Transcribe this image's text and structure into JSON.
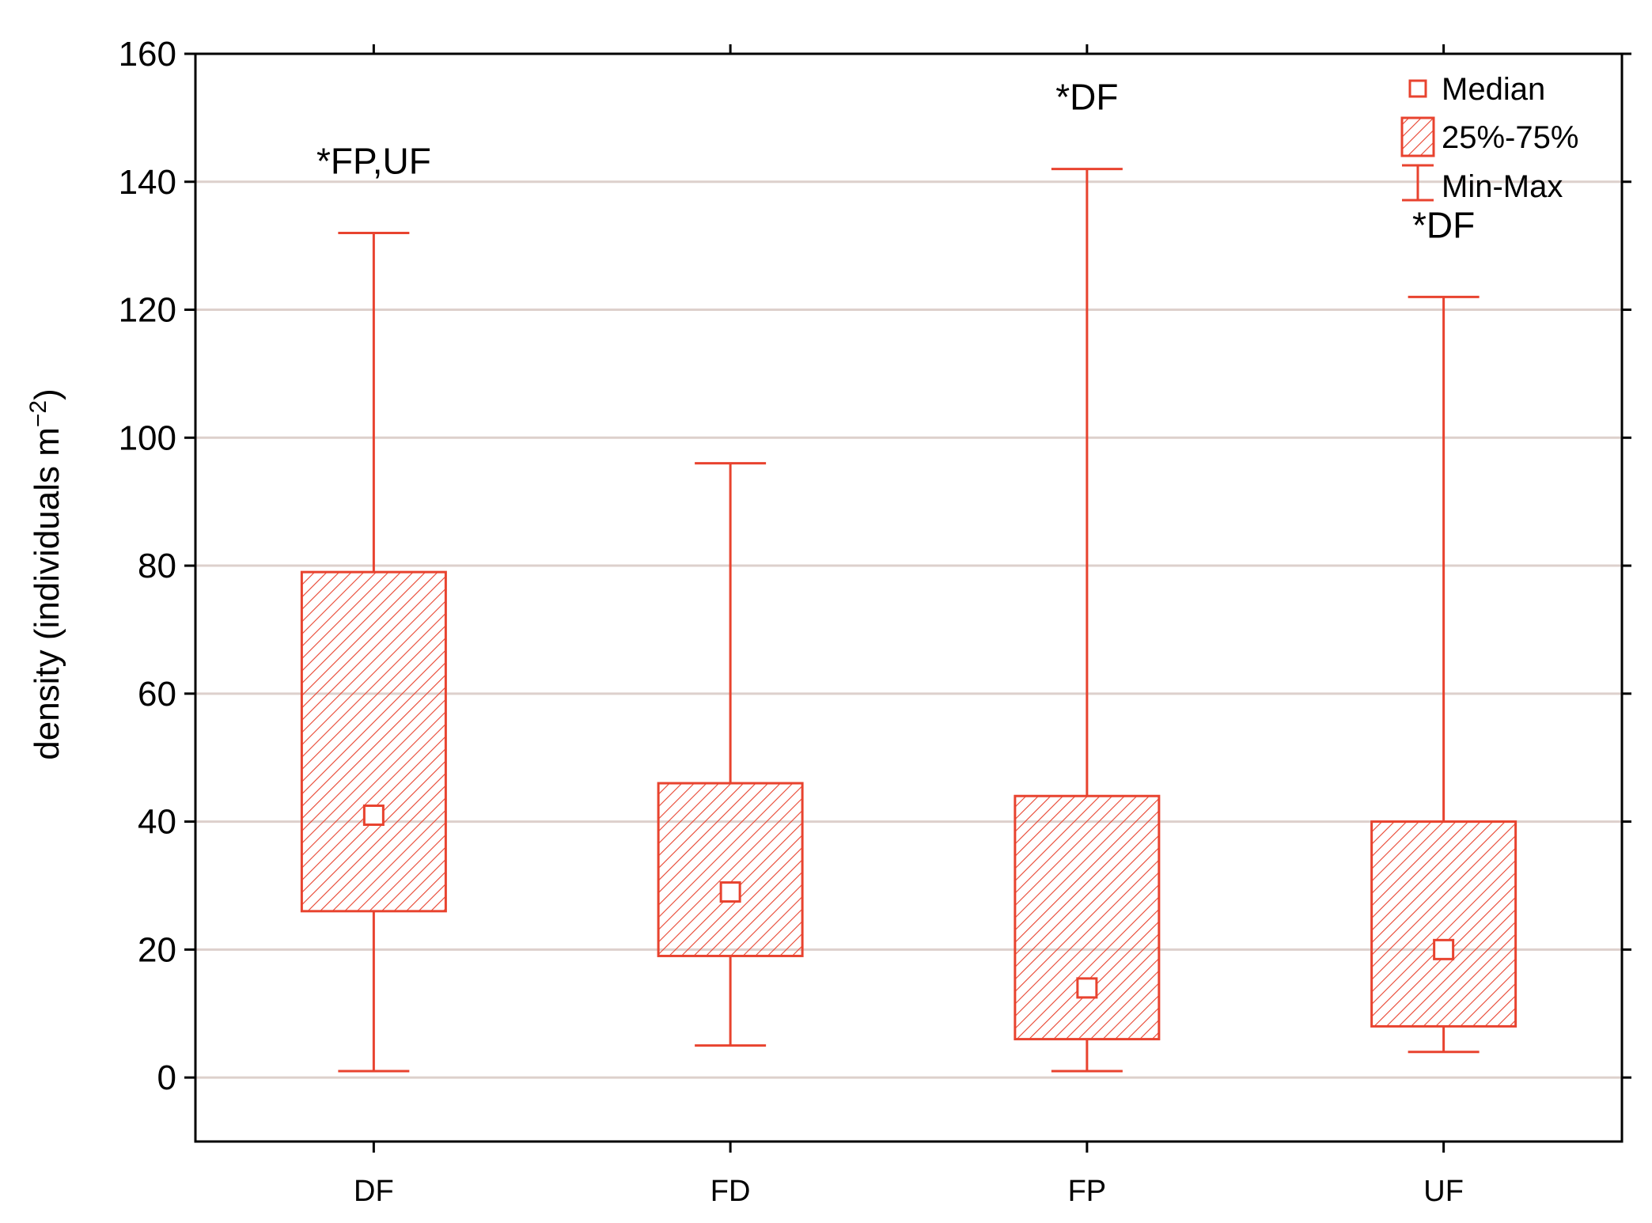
{
  "chart_data": {
    "type": "box",
    "title": "",
    "xlabel": "",
    "ylabel": "density (individuals m",
    "ylabel_superscript": "−2",
    "ylabel_close": ")",
    "ylim": [
      -10,
      160
    ],
    "yticks": [
      0,
      20,
      40,
      60,
      80,
      100,
      120,
      140,
      160
    ],
    "grid": true,
    "legend_position": "top-right",
    "color": "#e8432f",
    "categories": [
      "DF",
      "FD",
      "FP",
      "UF"
    ],
    "boxes": [
      {
        "category": "DF",
        "min": 1,
        "q1": 26,
        "median": 41,
        "q3": 79,
        "max": 132,
        "annotation": "*FP,UF"
      },
      {
        "category": "FD",
        "min": 5,
        "q1": 19,
        "median": 29,
        "q3": 46,
        "max": 96,
        "annotation": ""
      },
      {
        "category": "FP",
        "min": 1,
        "q1": 6,
        "median": 14,
        "q3": 44,
        "max": 142,
        "annotation": "*DF"
      },
      {
        "category": "UF",
        "min": 4,
        "q1": 8,
        "median": 20,
        "q3": 40,
        "max": 122,
        "annotation": "*DF"
      }
    ],
    "legend": [
      {
        "symbol": "median-square",
        "label": "Median"
      },
      {
        "symbol": "hatched-box",
        "label": "25%-75%"
      },
      {
        "symbol": "whisker",
        "label": "Min-Max"
      }
    ]
  }
}
